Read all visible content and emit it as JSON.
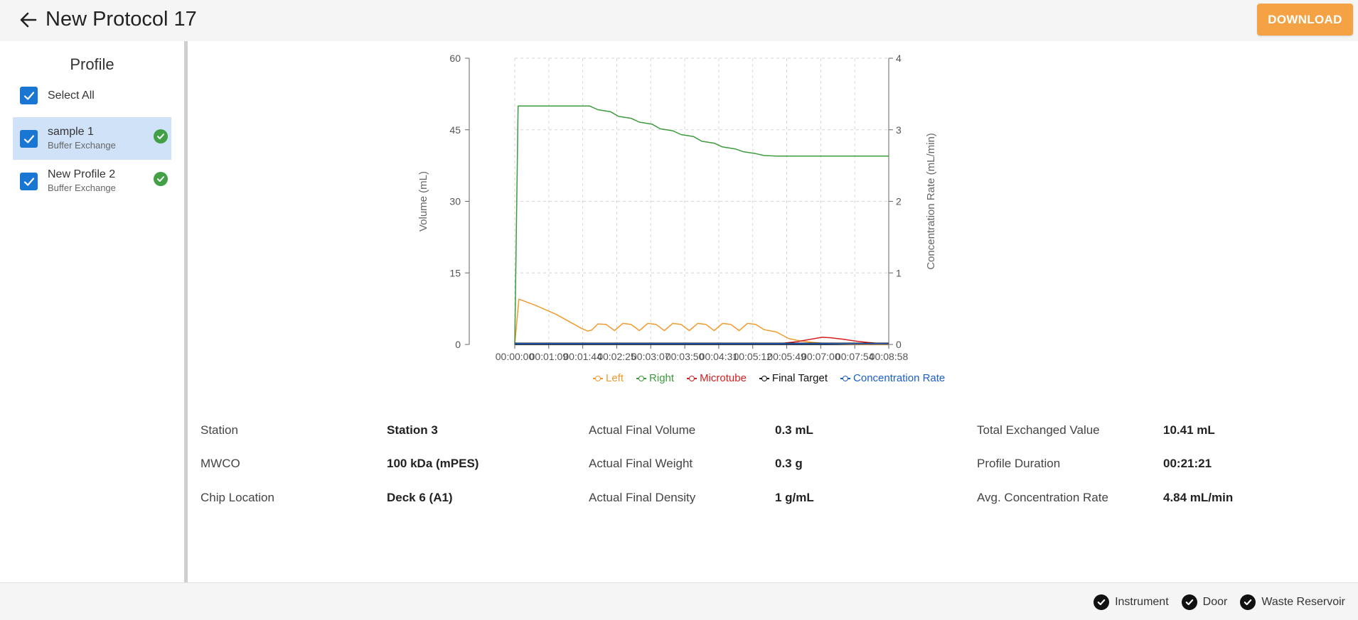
{
  "header": {
    "title": "New Protocol 17",
    "download_label": "DOWNLOAD"
  },
  "sidebar": {
    "title": "Profile",
    "select_all_label": "Select All",
    "select_all_checked": true,
    "profiles": [
      {
        "name": "sample 1",
        "type": "Buffer Exchange",
        "checked": true,
        "active": true,
        "status": "ok"
      },
      {
        "name": "New Profile 2",
        "type": "Buffer Exchange",
        "checked": true,
        "active": false,
        "status": "ok"
      }
    ]
  },
  "chart_data": {
    "type": "line",
    "x_ticks": [
      "00:00:00",
      "00:01:09",
      "00:01:44",
      "00:02:25",
      "00:03:07",
      "00:03:50",
      "00:04:31",
      "00:05:12",
      "00:05:49",
      "00:07:00",
      "00:07:54",
      "00:08:58"
    ],
    "ylabel": "Volume (mL)",
    "y2label": "Concentration Rate (mL/min)",
    "ylim": [
      0,
      60
    ],
    "yticks": [
      "0",
      "15",
      "30",
      "45",
      "60"
    ],
    "y2lim": [
      0,
      4
    ],
    "y2ticks": [
      "0",
      "1",
      "2",
      "3",
      "4"
    ],
    "grid": true,
    "legend_position": "bottom",
    "series": [
      {
        "name": "Left",
        "color": "#f39a2f",
        "axis": "left",
        "x": [
          0,
          0.1,
          0.5,
          1.0,
          1.6,
          1.75,
          1.85,
          2.0,
          2.2,
          2.4,
          2.6,
          2.8,
          3.0,
          3.2,
          3.4,
          3.6,
          3.8,
          4.0,
          4.2,
          4.4,
          4.6,
          4.8,
          5.0,
          5.2,
          5.4,
          5.6,
          5.8,
          6.0,
          6.3,
          6.6,
          6.9,
          7.2,
          7.5,
          7.8,
          8.1,
          8.4,
          8.7,
          9.0
        ],
        "y": [
          0,
          9.5,
          8.2,
          6.3,
          3.4,
          2.8,
          3.0,
          4.3,
          4.2,
          2.9,
          4.4,
          4.2,
          2.9,
          4.4,
          4.2,
          2.9,
          4.4,
          4.2,
          2.9,
          4.4,
          4.2,
          2.9,
          4.4,
          4.2,
          2.9,
          4.4,
          4.2,
          3.1,
          2.6,
          1.2,
          0.7,
          0.4,
          0.2,
          0.1,
          0.05,
          0.02,
          0.01,
          0
        ]
      },
      {
        "name": "Right",
        "color": "#3d9b3d",
        "axis": "left",
        "x": [
          0,
          0.08,
          1.8,
          2.0,
          2.3,
          2.5,
          2.8,
          3.0,
          3.3,
          3.5,
          3.8,
          4.0,
          4.3,
          4.5,
          4.8,
          5.0,
          5.3,
          5.5,
          5.8,
          6.0,
          6.3,
          6.5,
          9.0
        ],
        "y": [
          0,
          50,
          50,
          49.2,
          48.8,
          47.8,
          47.4,
          46.6,
          46.2,
          45.2,
          44.8,
          44.0,
          43.6,
          42.6,
          42.2,
          41.4,
          41.0,
          40.4,
          40.0,
          39.6,
          39.5,
          39.5,
          39.5
        ]
      },
      {
        "name": "Microtube",
        "color": "#d42020",
        "axis": "left",
        "x": [
          0,
          6.4,
          6.8,
          7.2,
          7.4,
          7.6,
          7.9,
          8.2,
          8.5,
          8.8,
          9.0
        ],
        "y": [
          0.2,
          0.2,
          0.6,
          1.2,
          1.5,
          1.4,
          1.1,
          0.7,
          0.4,
          0.2,
          0.1
        ]
      },
      {
        "name": "Final Target",
        "color": "#111111",
        "axis": "left",
        "x": [
          0,
          9.0
        ],
        "y": [
          0.25,
          0.25
        ]
      },
      {
        "name": "Concentration Rate",
        "color": "#1a5fc7",
        "axis": "right",
        "x": [
          0,
          9.0
        ],
        "y": [
          0.01,
          0.01
        ]
      }
    ]
  },
  "details": [
    {
      "label": "Station",
      "value": "Station 3"
    },
    {
      "label": "MWCO",
      "value": "100 kDa (mPES)"
    },
    {
      "label": "Chip Location",
      "value": "Deck 6 (A1)"
    },
    {
      "label": "Actual Final Volume",
      "value": "0.3 mL"
    },
    {
      "label": "Actual Final Weight",
      "value": "0.3 g"
    },
    {
      "label": "Actual Final Density",
      "value": "1 g/mL"
    },
    {
      "label": "Total Exchanged Value",
      "value": "10.41 mL"
    },
    {
      "label": "Profile Duration",
      "value": "00:21:21"
    },
    {
      "label": "Avg. Concentration Rate",
      "value": "4.84 mL/min"
    }
  ],
  "footer": {
    "status_items": [
      {
        "label": "Instrument",
        "icon": "check-circle-icon"
      },
      {
        "label": "Door",
        "icon": "check-circle-icon"
      },
      {
        "label": "Waste Reservoir",
        "icon": "check-circle-icon"
      }
    ]
  }
}
